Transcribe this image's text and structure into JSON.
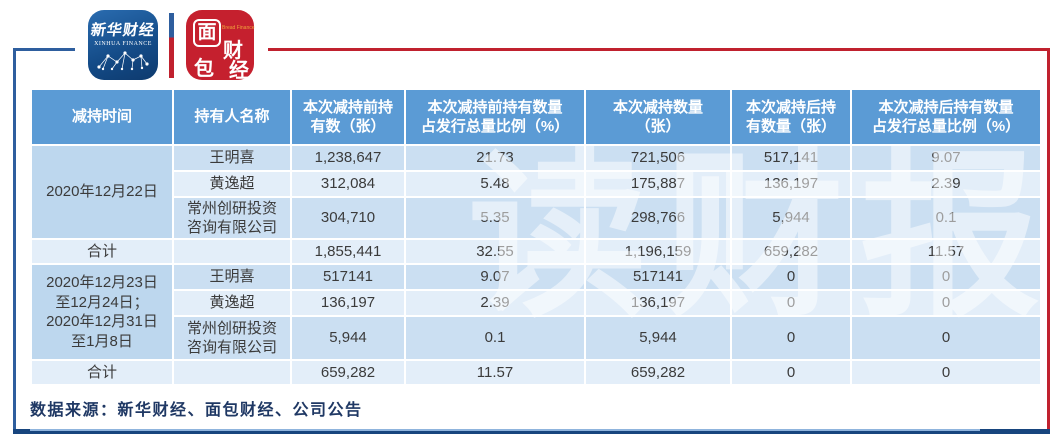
{
  "header": {
    "xinhua_logo": {
      "title": "新华财经",
      "subtitle": "XINHUA FINANCE"
    },
    "bread_logo": {
      "c1": "面",
      "c2": "包",
      "c3": "财",
      "c4": "经",
      "subtitle": "Bread Finance"
    }
  },
  "watermark": {
    "text": "读财报"
  },
  "chart_data": {
    "type": "table",
    "columns": [
      "减持时间",
      "持有人名称",
      "本次减持前持\n有数（张）",
      "本次减持前持有数量\n占发行总量比例（%）",
      "本次减持数量\n（张）",
      "本次减持后持\n有数量（张）",
      "本次减持后持有数量\n占发行总量比例（%）"
    ],
    "rows": [
      {
        "shade": "dark",
        "cells": [
          {
            "t": "2020年12月22日",
            "rs": 3,
            "merged": true
          },
          {
            "t": "王明喜"
          },
          {
            "t": "1,238,647"
          },
          {
            "t": "21.73"
          },
          {
            "t": "721,506"
          },
          {
            "t": "517,141"
          },
          {
            "t": "9.07"
          }
        ]
      },
      {
        "shade": "light",
        "cells": [
          {
            "t": "黄逸超"
          },
          {
            "t": "312,084"
          },
          {
            "t": "5.48"
          },
          {
            "t": "175,887"
          },
          {
            "t": "136,197"
          },
          {
            "t": "2.39"
          }
        ]
      },
      {
        "shade": "dark",
        "cells": [
          {
            "t": "常州创研投资\n咨询有限公司"
          },
          {
            "t": "304,710"
          },
          {
            "t": "5.35"
          },
          {
            "t": "298,766"
          },
          {
            "t": "5,944"
          },
          {
            "t": "0.1"
          }
        ]
      },
      {
        "shade": "light",
        "total": true,
        "cells": [
          {
            "t": "合计"
          },
          {
            "t": ""
          },
          {
            "t": "1,855,441"
          },
          {
            "t": "32.55"
          },
          {
            "t": "1,196,159"
          },
          {
            "t": "659,282"
          },
          {
            "t": "11.57"
          }
        ]
      },
      {
        "shade": "dark",
        "cells": [
          {
            "t": "2020年12月23日\n至12月24日；\n2020年12月31日\n至1月8日",
            "rs": 3,
            "merged": true
          },
          {
            "t": "王明喜"
          },
          {
            "t": "517141"
          },
          {
            "t": "9.07"
          },
          {
            "t": "517141"
          },
          {
            "t": "0"
          },
          {
            "t": "0"
          }
        ]
      },
      {
        "shade": "light",
        "cells": [
          {
            "t": "黄逸超"
          },
          {
            "t": "136,197"
          },
          {
            "t": "2.39"
          },
          {
            "t": "136,197"
          },
          {
            "t": "0"
          },
          {
            "t": "0"
          }
        ]
      },
      {
        "shade": "dark",
        "cells": [
          {
            "t": "常州创研投资\n咨询有限公司"
          },
          {
            "t": "5,944"
          },
          {
            "t": "0.1"
          },
          {
            "t": "5,944"
          },
          {
            "t": "0"
          },
          {
            "t": "0"
          }
        ]
      },
      {
        "shade": "light",
        "total": true,
        "cells": [
          {
            "t": "合计"
          },
          {
            "t": ""
          },
          {
            "t": "659,282"
          },
          {
            "t": "11.57"
          },
          {
            "t": "659,282"
          },
          {
            "t": "0"
          },
          {
            "t": "0"
          }
        ]
      }
    ]
  },
  "footer": {
    "source": "数据来源：新华财经、面包财经、公司公告"
  },
  "colors": {
    "header_bg": "#5B9BD5",
    "stripe_dark": "#CBDFF2",
    "stripe_light": "#E3EEF9",
    "merged_bg": "#BDD7EE",
    "frame_blue": "#2E5E9E",
    "frame_navy": "#17457E",
    "accent_red": "#C0212E",
    "source_text": "#1F3864"
  }
}
